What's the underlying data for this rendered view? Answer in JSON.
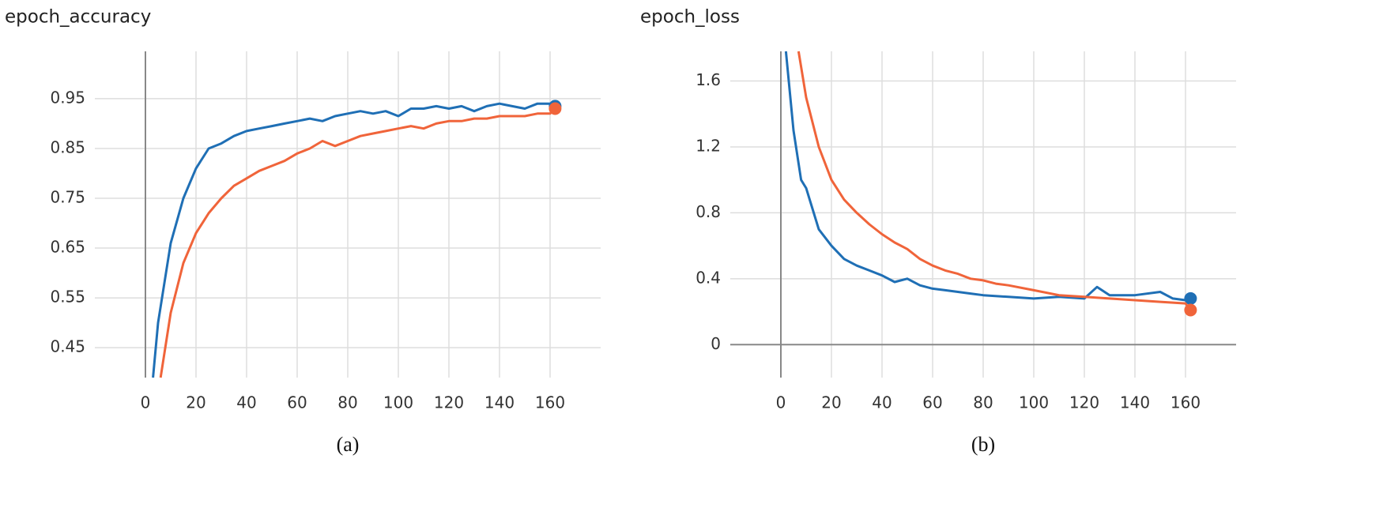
{
  "chart_data": [
    {
      "type": "line",
      "title": "epoch_accuracy",
      "caption": "(a)",
      "xlim": [
        -20,
        180
      ],
      "xticks": [
        0,
        20,
        40,
        60,
        80,
        100,
        120,
        140,
        160
      ],
      "ylim": [
        0.39,
        1.045
      ],
      "yticks": [
        0.45,
        0.55,
        0.65,
        0.75,
        0.85,
        0.95
      ],
      "grid": true,
      "series": [
        {
          "color": "#1f6fb5",
          "x": [
            3,
            5,
            10,
            15,
            20,
            25,
            30,
            35,
            40,
            45,
            50,
            55,
            60,
            65,
            70,
            75,
            80,
            85,
            90,
            95,
            100,
            105,
            110,
            115,
            120,
            125,
            130,
            135,
            140,
            145,
            150,
            155,
            160,
            162
          ],
          "values": [
            0.39,
            0.5,
            0.66,
            0.75,
            0.81,
            0.85,
            0.86,
            0.875,
            0.885,
            0.89,
            0.895,
            0.9,
            0.905,
            0.91,
            0.905,
            0.915,
            0.92,
            0.925,
            0.92,
            0.925,
            0.915,
            0.93,
            0.93,
            0.935,
            0.93,
            0.935,
            0.925,
            0.935,
            0.94,
            0.935,
            0.93,
            0.94,
            0.94,
            0.935
          ]
        },
        {
          "color": "#f0643a",
          "x": [
            6,
            10,
            15,
            20,
            25,
            30,
            35,
            40,
            45,
            50,
            55,
            60,
            65,
            70,
            75,
            80,
            85,
            90,
            95,
            100,
            105,
            110,
            115,
            120,
            125,
            130,
            135,
            140,
            145,
            150,
            155,
            160,
            162
          ],
          "values": [
            0.39,
            0.52,
            0.62,
            0.68,
            0.72,
            0.75,
            0.775,
            0.79,
            0.805,
            0.815,
            0.825,
            0.84,
            0.85,
            0.865,
            0.855,
            0.865,
            0.875,
            0.88,
            0.885,
            0.89,
            0.895,
            0.89,
            0.9,
            0.905,
            0.905,
            0.91,
            0.91,
            0.915,
            0.915,
            0.915,
            0.92,
            0.92,
            0.93
          ]
        }
      ]
    },
    {
      "type": "line",
      "title": "epoch_loss",
      "caption": "(b)",
      "xlim": [
        -20,
        180
      ],
      "xticks": [
        0,
        20,
        40,
        60,
        80,
        100,
        120,
        140,
        160
      ],
      "ylim": [
        -0.2,
        1.78
      ],
      "yticks": [
        0,
        0.4,
        0.8,
        1.2,
        1.6
      ],
      "grid": true,
      "series": [
        {
          "color": "#1f6fb5",
          "x": [
            2,
            5,
            8,
            10,
            12,
            15,
            20,
            25,
            30,
            35,
            40,
            45,
            50,
            55,
            60,
            65,
            70,
            75,
            80,
            90,
            100,
            110,
            120,
            125,
            130,
            140,
            150,
            155,
            160,
            162
          ],
          "values": [
            1.78,
            1.3,
            1.0,
            0.95,
            0.85,
            0.7,
            0.6,
            0.52,
            0.48,
            0.45,
            0.42,
            0.38,
            0.4,
            0.36,
            0.34,
            0.33,
            0.32,
            0.31,
            0.3,
            0.29,
            0.28,
            0.29,
            0.28,
            0.35,
            0.3,
            0.3,
            0.32,
            0.28,
            0.27,
            0.28
          ]
        },
        {
          "color": "#f0643a",
          "x": [
            7,
            10,
            15,
            20,
            25,
            30,
            35,
            40,
            45,
            50,
            55,
            60,
            65,
            70,
            75,
            80,
            85,
            90,
            100,
            110,
            120,
            130,
            140,
            150,
            160,
            162
          ],
          "values": [
            1.78,
            1.5,
            1.2,
            1.0,
            0.88,
            0.8,
            0.73,
            0.67,
            0.62,
            0.58,
            0.52,
            0.48,
            0.45,
            0.43,
            0.4,
            0.39,
            0.37,
            0.36,
            0.33,
            0.3,
            0.29,
            0.28,
            0.27,
            0.26,
            0.25,
            0.21
          ]
        }
      ]
    }
  ]
}
